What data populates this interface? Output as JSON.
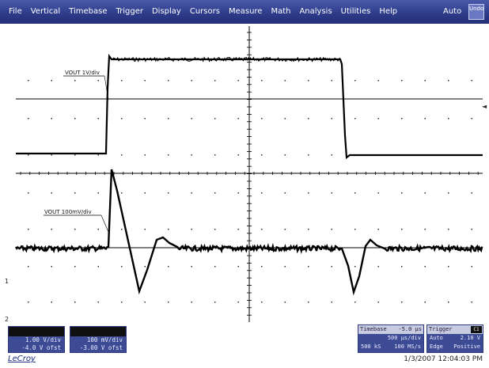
{
  "menubar": {
    "items": [
      "File",
      "Vertical",
      "Timebase",
      "Trigger",
      "Display",
      "Cursors",
      "Measure",
      "Math",
      "Analysis",
      "Utilities",
      "Help"
    ],
    "auto_label": "Auto",
    "mode_button": "Undo"
  },
  "traces": {
    "upper_label": "VOUT 1V/div",
    "lower_label": "VOUT 100mV/div"
  },
  "channel_boxes": [
    {
      "row1": "1.00 V/div",
      "row2": "-4.0 V ofst"
    },
    {
      "row1": "100 mV/div",
      "row2": "-3.00 V ofst"
    }
  ],
  "timebase": {
    "title": "Timebase",
    "value": "-5.0 µs",
    "row1_value": "500 µs/div",
    "row2_left": "500 kS",
    "row2_value": "100 MS/s"
  },
  "trigger": {
    "title": "Trigger",
    "badge": "C1",
    "row1_left": "Auto",
    "row1_value": "2.10 V",
    "row2_left": "Edge",
    "row2_value": "Positive"
  },
  "markers": {
    "c1_marker": "1",
    "c2_marker": "2",
    "trigger_arrow": "◄"
  },
  "footer": {
    "brand": "LeCroy",
    "datetime": "1/3/2007 12:04:03 PM"
  },
  "colors": {
    "menubar": "#2c3a88",
    "panel": "#3d4a94",
    "trace": "#000000",
    "grid": "#000000"
  }
}
